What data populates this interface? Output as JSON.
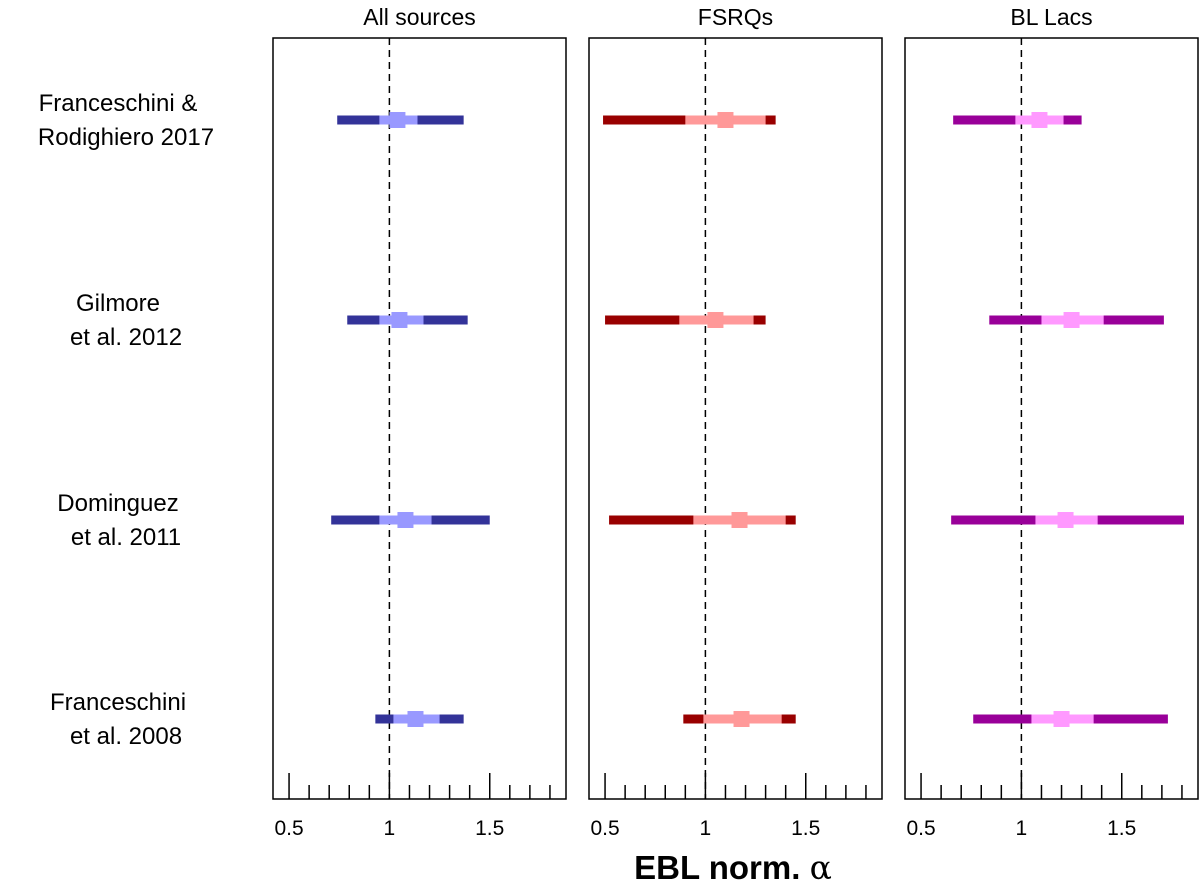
{
  "chart_data": {
    "type": "forest",
    "xlabel": "EBL norm.",
    "xlabel_symbol": "α",
    "xlim": [
      0.42,
      1.88
    ],
    "xticks": [
      0.5,
      1,
      1.5
    ],
    "xtick_labels": [
      "0.5",
      "1",
      "1.5"
    ],
    "minor_tick_step": 0.1,
    "reference_line": 1,
    "models": [
      {
        "label_lines": [
          "Franceschini &",
          "Rodighiero 2017"
        ]
      },
      {
        "label_lines": [
          "Gilmore",
          "et al. 2012"
        ]
      },
      {
        "label_lines": [
          "Dominguez",
          "et al. 2011"
        ]
      },
      {
        "label_lines": [
          "Franceschini",
          "et al. 2008"
        ]
      }
    ],
    "panels": [
      {
        "title": "All sources",
        "colors": {
          "outer": "#333399",
          "inner": "#9999ff"
        },
        "estimates": [
          {
            "value": 1.04,
            "ci68": [
              0.95,
              1.14
            ],
            "ci95": [
              0.74,
              1.37
            ]
          },
          {
            "value": 1.05,
            "ci68": [
              0.95,
              1.17
            ],
            "ci95": [
              0.79,
              1.39
            ]
          },
          {
            "value": 1.08,
            "ci68": [
              0.95,
              1.21
            ],
            "ci95": [
              0.71,
              1.5
            ]
          },
          {
            "value": 1.13,
            "ci68": [
              1.02,
              1.25
            ],
            "ci95": [
              0.93,
              1.37
            ]
          }
        ]
      },
      {
        "title": "FSRQs",
        "colors": {
          "outer": "#990000",
          "inner": "#ff9999"
        },
        "estimates": [
          {
            "value": 1.1,
            "ci68": [
              0.9,
              1.3
            ],
            "ci95": [
              0.49,
              1.35
            ]
          },
          {
            "value": 1.05,
            "ci68": [
              0.87,
              1.24
            ],
            "ci95": [
              0.5,
              1.3
            ]
          },
          {
            "value": 1.17,
            "ci68": [
              0.94,
              1.4
            ],
            "ci95": [
              0.52,
              1.45
            ]
          },
          {
            "value": 1.18,
            "ci68": [
              0.99,
              1.38
            ],
            "ci95": [
              0.89,
              1.45
            ]
          }
        ]
      },
      {
        "title": "BL Lacs",
        "colors": {
          "outer": "#990099",
          "inner": "#ff99ff"
        },
        "estimates": [
          {
            "value": 1.09,
            "ci68": [
              0.97,
              1.21
            ],
            "ci95": [
              0.66,
              1.3
            ]
          },
          {
            "value": 1.25,
            "ci68": [
              1.1,
              1.41
            ],
            "ci95": [
              0.84,
              1.71
            ]
          },
          {
            "value": 1.22,
            "ci68": [
              1.07,
              1.38
            ],
            "ci95": [
              0.65,
              1.81
            ]
          },
          {
            "value": 1.2,
            "ci68": [
              1.05,
              1.36
            ],
            "ci95": [
              0.76,
              1.73
            ]
          }
        ]
      }
    ]
  }
}
